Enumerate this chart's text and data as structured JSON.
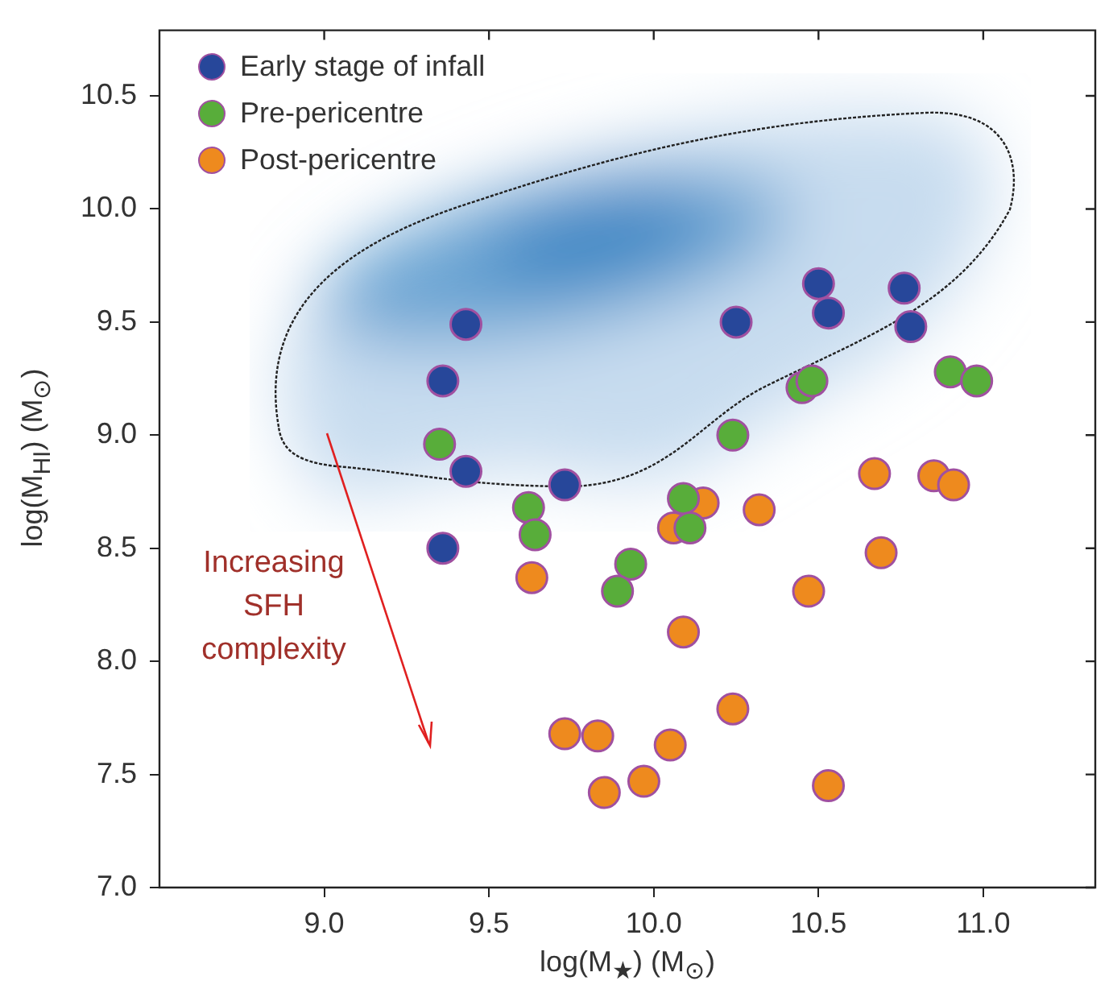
{
  "chart_data": {
    "type": "scatter",
    "xlabel": "log(M$_{★}$) (M$_{⊙}$)",
    "ylabel": "log(M$_{HI}$) (M$_{⊙}$)",
    "xlim": [
      8.5,
      11.34
    ],
    "ylim": [
      7.0,
      10.79
    ],
    "xticks": [
      {
        "value": 9.0,
        "label": "9.0"
      },
      {
        "value": 9.5,
        "label": "9.5"
      },
      {
        "value": 10.0,
        "label": "10.0"
      },
      {
        "value": 10.5,
        "label": "10.5"
      },
      {
        "value": 11.0,
        "label": "11.0"
      }
    ],
    "yticks": [
      {
        "value": 7.0,
        "label": "7.0"
      },
      {
        "value": 7.5,
        "label": "7.5"
      },
      {
        "value": 8.0,
        "label": "8.0"
      },
      {
        "value": 8.5,
        "label": "8.5"
      },
      {
        "value": 9.0,
        "label": "9.0"
      },
      {
        "value": 9.5,
        "label": "9.5"
      },
      {
        "value": 10.0,
        "label": "10.0"
      },
      {
        "value": 10.5,
        "label": "10.5"
      }
    ],
    "grid": false,
    "legend": "top left",
    "marker": "circle",
    "annotations": [
      "Increasing SFH complexity"
    ],
    "series": [
      {
        "name": "Early stage of infall",
        "color": "#27479a",
        "x": [
          9.43,
          9.36,
          9.43,
          9.73,
          9.36,
          10.25,
          10.5,
          10.53,
          10.76,
          10.78
        ],
        "values": [
          9.49,
          9.24,
          8.84,
          8.78,
          8.5,
          9.5,
          9.67,
          9.54,
          9.65,
          9.48
        ]
      },
      {
        "name": "Pre-pericentre",
        "color": "#58ad3a",
        "x": [
          9.35,
          9.62,
          9.64,
          9.93,
          9.89,
          10.45,
          10.48,
          10.24,
          10.09,
          10.11,
          10.9,
          10.98
        ],
        "values": [
          8.96,
          8.68,
          8.56,
          8.43,
          8.31,
          9.21,
          9.24,
          9.0,
          8.72,
          8.59,
          9.28,
          9.24
        ]
      },
      {
        "name": "Post-pericentre",
        "color": "#ee8a1e",
        "x": [
          9.63,
          10.15,
          10.06,
          10.32,
          10.67,
          10.85,
          10.91,
          10.69,
          10.47,
          10.09,
          10.24,
          9.73,
          9.83,
          10.05,
          9.97,
          9.85,
          10.53
        ],
        "values": [
          8.37,
          8.7,
          8.59,
          8.67,
          8.83,
          8.82,
          8.78,
          8.48,
          8.31,
          8.13,
          7.79,
          7.68,
          7.67,
          7.63,
          7.47,
          7.42,
          7.45
        ]
      }
    ]
  }
}
